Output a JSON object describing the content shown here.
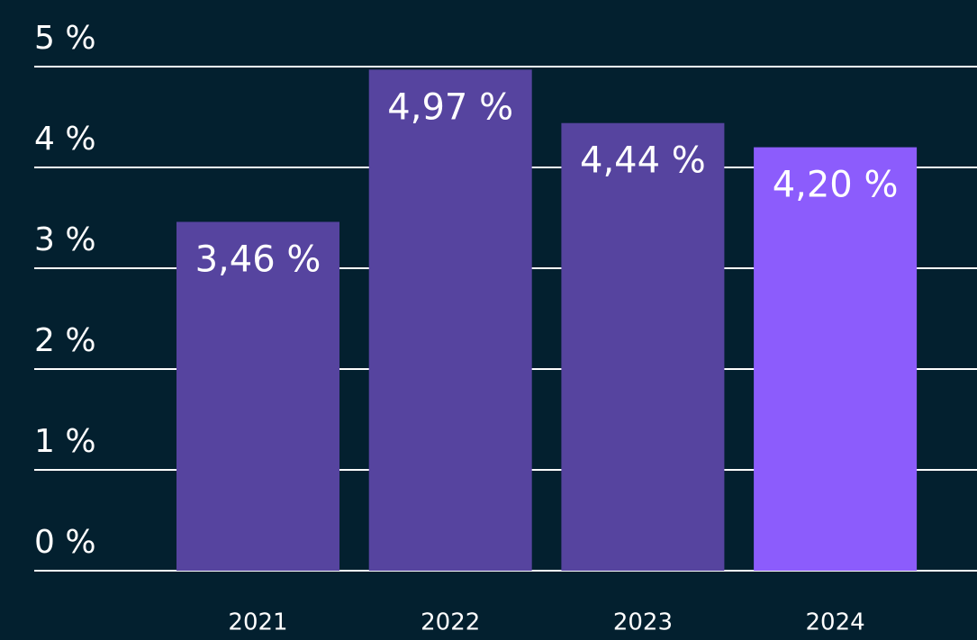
{
  "chart_data": {
    "type": "bar",
    "categories": [
      "2021",
      "2022",
      "2023",
      "2024"
    ],
    "values": [
      3.46,
      4.97,
      4.44,
      4.2
    ],
    "value_labels": [
      "3,46 %",
      "4,97 %",
      "4,44 %",
      "4,20 %"
    ],
    "colors": [
      "#56449f",
      "#56449f",
      "#56449f",
      "#8c5cfc"
    ],
    "ylim": [
      0,
      5
    ],
    "yticks": [
      {
        "value": 0,
        "label": "0 %"
      },
      {
        "value": 1,
        "label": "1 %"
      },
      {
        "value": 2,
        "label": "2 %"
      },
      {
        "value": 3,
        "label": "3 %"
      },
      {
        "value": 4,
        "label": "4 %"
      },
      {
        "value": 5,
        "label": "5 %"
      }
    ],
    "grid": true
  }
}
